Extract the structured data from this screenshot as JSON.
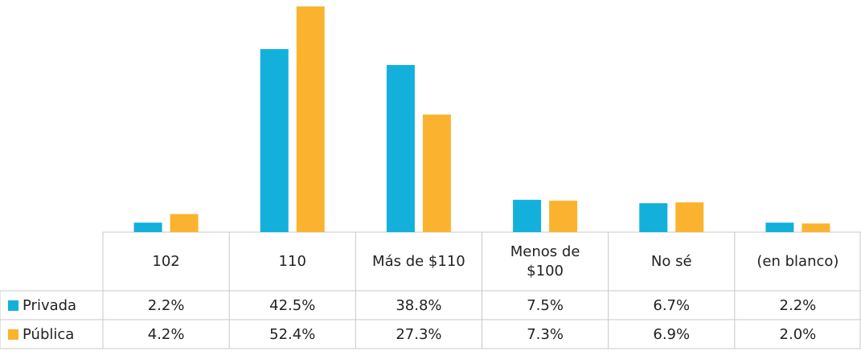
{
  "chart_data": {
    "type": "bar",
    "categories": [
      "102",
      "110",
      "Más de $110",
      "Menos de $100",
      "No sé",
      "(en blanco)"
    ],
    "series": [
      {
        "name": "Privada",
        "color": "#13b0dc",
        "values": [
          2.2,
          42.5,
          38.8,
          7.5,
          6.7,
          2.2
        ],
        "value_labels": [
          "2.2%",
          "42.5%",
          "38.8%",
          "7.5%",
          "6.7%",
          "2.2%"
        ]
      },
      {
        "name": "Pública",
        "color": "#fbb32f",
        "values": [
          4.2,
          52.4,
          27.3,
          7.3,
          6.9,
          2.0
        ],
        "value_labels": [
          "4.2%",
          "52.4%",
          "27.3%",
          "7.3%",
          "6.9%",
          "2.0%"
        ]
      }
    ]
  }
}
